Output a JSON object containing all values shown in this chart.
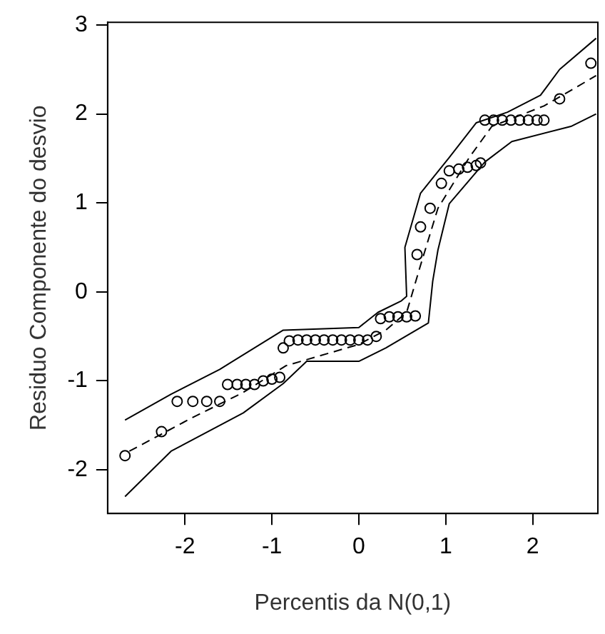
{
  "chart_data": {
    "type": "scatter",
    "xlabel": "Percentis da N(0,1)",
    "ylabel": "Residuo Componente do desvio",
    "xlim": [
      -2.89,
      2.75
    ],
    "ylim": [
      -2.49,
      3.03
    ],
    "xticks": [
      -2,
      -1,
      0,
      1,
      2
    ],
    "yticks": [
      -2,
      -1,
      0,
      1,
      2,
      3
    ],
    "grid": false,
    "legend": false,
    "series": [
      {
        "type": "line",
        "color": "#000000",
        "line_style": "solid",
        "marker": "none",
        "x": [
          -2.69,
          -2.16,
          -1.6,
          -0.87,
          0,
          0.22,
          0.49,
          0.55,
          0.53,
          0.71,
          1.04,
          1.35,
          1.71,
          2.09,
          2.31,
          2.73
        ],
        "values": [
          -1.44,
          -1.15,
          -0.87,
          -0.43,
          -0.4,
          -0.23,
          -0.1,
          -0.05,
          0.5,
          1.11,
          1.51,
          1.9,
          2.02,
          2.21,
          2.5,
          2.85
        ]
      },
      {
        "type": "line",
        "color": "#000000",
        "line_style": "dashed",
        "marker": "none",
        "x": [
          -2.64,
          -1.91,
          -1.33,
          -0.84,
          0,
          0.31,
          0.55,
          0.71,
          0.91,
          1.27,
          1.53,
          2.13,
          2.73
        ],
        "values": [
          -1.79,
          -1.41,
          -1.13,
          -0.83,
          -0.59,
          -0.43,
          -0.23,
          0.3,
          0.94,
          1.51,
          1.86,
          2.09,
          2.43
        ]
      },
      {
        "type": "line",
        "color": "#000000",
        "line_style": "solid",
        "marker": "none",
        "x": [
          -2.69,
          -2.16,
          -1.33,
          -0.87,
          -0.6,
          0,
          0.31,
          0.8,
          0.85,
          0.91,
          1.04,
          1.45,
          1.76,
          2.44,
          2.73
        ],
        "values": [
          -2.3,
          -1.79,
          -1.36,
          -1.03,
          -0.78,
          -0.78,
          -0.63,
          -0.35,
          0.12,
          0.47,
          0.99,
          1.46,
          1.69,
          1.86,
          2.0
        ]
      },
      {
        "type": "scatter",
        "color": "#000000",
        "marker": "circle",
        "x": [
          -2.69,
          -2.27,
          -2.09,
          -1.91,
          -1.75,
          -1.6,
          -1.51,
          -1.4,
          -1.3,
          -1.2,
          -1.1,
          -1.0,
          -0.91,
          -0.87,
          -0.8,
          -0.7,
          -0.6,
          -0.5,
          -0.4,
          -0.3,
          -0.2,
          -0.1,
          0,
          0.1,
          0.2,
          0.25,
          0.35,
          0.45,
          0.55,
          0.65,
          0.67,
          0.71,
          0.82,
          0.95,
          1.04,
          1.15,
          1.25,
          1.35,
          1.4,
          1.45,
          1.55,
          1.65,
          1.75,
          1.85,
          1.95,
          2.05,
          2.13,
          2.31,
          2.67
        ],
        "values": [
          -1.84,
          -1.57,
          -1.23,
          -1.23,
          -1.23,
          -1.23,
          -1.04,
          -1.04,
          -1.04,
          -1.04,
          -1.0,
          -0.98,
          -0.96,
          -0.63,
          -0.55,
          -0.54,
          -0.54,
          -0.54,
          -0.54,
          -0.54,
          -0.54,
          -0.54,
          -0.54,
          -0.54,
          -0.5,
          -0.3,
          -0.28,
          -0.28,
          -0.28,
          -0.27,
          0.42,
          0.73,
          0.94,
          1.22,
          1.36,
          1.38,
          1.4,
          1.42,
          1.45,
          1.93,
          1.93,
          1.93,
          1.93,
          1.93,
          1.93,
          1.93,
          1.93,
          2.17,
          2.57
        ]
      }
    ]
  }
}
